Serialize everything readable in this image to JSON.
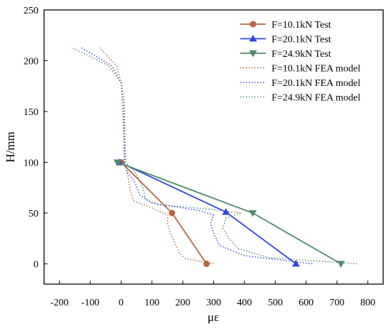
{
  "chart_data": {
    "type": "line",
    "xlabel": "με",
    "ylabel": "H/mm",
    "xlim": [
      -250,
      850
    ],
    "ylim": [
      -20,
      250
    ],
    "x_ticks": [
      -200,
      -100,
      0,
      100,
      200,
      300,
      400,
      500,
      600,
      700,
      800
    ],
    "x_tick_labels": [
      "-200",
      "-100",
      "0",
      "100",
      "200",
      "300",
      "400",
      "500",
      "600",
      "700",
      "800"
    ],
    "y_ticks": [
      0,
      50,
      100,
      150,
      200,
      250
    ],
    "y_tick_labels": [
      "0",
      "50",
      "100",
      "150",
      "200",
      "250"
    ],
    "grid": false,
    "legend_position": "top-right",
    "series": [
      {
        "name": "F=10.1kN Test",
        "style": "solid",
        "marker": "circle",
        "color": "#b5673f",
        "points": [
          [
            277,
            0
          ],
          [
            165,
            50
          ],
          [
            0,
            100
          ]
        ]
      },
      {
        "name": "F=20.1kN Test",
        "style": "solid",
        "marker": "triangle-up",
        "color": "#3344dd",
        "points": [
          [
            567,
            0
          ],
          [
            340,
            51
          ],
          [
            -5,
            100
          ]
        ]
      },
      {
        "name": "F=24.9kN Test",
        "style": "solid",
        "marker": "triangle-down",
        "color": "#4f8a6a",
        "points": [
          [
            713,
            0
          ],
          [
            427,
            50
          ],
          [
            -12,
            100
          ]
        ]
      },
      {
        "name": "F=10.1kN FEA model",
        "style": "dotted",
        "marker": "none",
        "color": "#b5673f",
        "points": [
          [
            300,
            0
          ],
          [
            210,
            5
          ],
          [
            190,
            10
          ],
          [
            175,
            20
          ],
          [
            160,
            30
          ],
          [
            150,
            40
          ],
          [
            152,
            48
          ],
          [
            100,
            55
          ],
          [
            40,
            62
          ],
          [
            30,
            72
          ],
          [
            20,
            90
          ],
          [
            12,
            100
          ],
          [
            8,
            130
          ],
          [
            5,
            150
          ],
          [
            0,
            178
          ],
          [
            -15,
            195
          ],
          [
            -70,
            213
          ]
        ]
      },
      {
        "name": "F=20.1kN FEA model",
        "style": "dotted",
        "marker": "none",
        "color": "#3344dd",
        "points": [
          [
            620,
            0
          ],
          [
            400,
            8
          ],
          [
            320,
            18
          ],
          [
            300,
            30
          ],
          [
            290,
            40
          ],
          [
            300,
            48
          ],
          [
            260,
            52
          ],
          [
            180,
            56
          ],
          [
            100,
            60
          ],
          [
            60,
            68
          ],
          [
            45,
            80
          ],
          [
            20,
            90
          ],
          [
            10,
            100
          ],
          [
            10,
            130
          ],
          [
            8,
            160
          ],
          [
            0,
            178
          ],
          [
            -30,
            195
          ],
          [
            -130,
            213
          ]
        ]
      },
      {
        "name": "F=24.9kN FEA model",
        "style": "dotted",
        "marker": "none",
        "color": "#4f8a6a",
        "points": [
          [
            765,
            0
          ],
          [
            480,
            6
          ],
          [
            380,
            15
          ],
          [
            350,
            25
          ],
          [
            330,
            35
          ],
          [
            340,
            45
          ],
          [
            390,
            50
          ],
          [
            280,
            54
          ],
          [
            120,
            58
          ],
          [
            80,
            63
          ],
          [
            70,
            75
          ],
          [
            50,
            88
          ],
          [
            15,
            100
          ],
          [
            12,
            130
          ],
          [
            10,
            160
          ],
          [
            0,
            178
          ],
          [
            -40,
            195
          ],
          [
            -160,
            213
          ]
        ]
      }
    ]
  }
}
